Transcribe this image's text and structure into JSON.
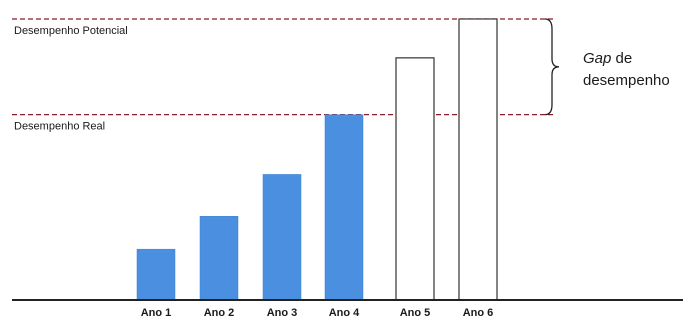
{
  "chart_data": {
    "type": "bar",
    "title": "",
    "xlabel": "",
    "ylabel": "",
    "categories": [
      "Ano 1",
      "Ano 2",
      "Ano 3",
      "Ano 4",
      "Ano 5",
      "Ano 6"
    ],
    "values": [
      1.7,
      2.8,
      4.2,
      6.2,
      8.1,
      9.4
    ],
    "filled": [
      true,
      true,
      true,
      true,
      false,
      false
    ],
    "ylim": [
      0,
      9.5
    ],
    "grid": false,
    "colors": {
      "filled_bar": "#4a8fe0",
      "outline_bar": "#333333",
      "reference_line": "#8b1a2b",
      "axis": "#222222"
    },
    "reference_lines": [
      {
        "label": "Desempenho Potencial",
        "value": 9.4
      },
      {
        "label": "Desempenho Real",
        "value": 6.2
      }
    ],
    "gap_annotation": {
      "italic_word": "Gap",
      "rest_line1": " de",
      "line2": "desempenho"
    }
  }
}
